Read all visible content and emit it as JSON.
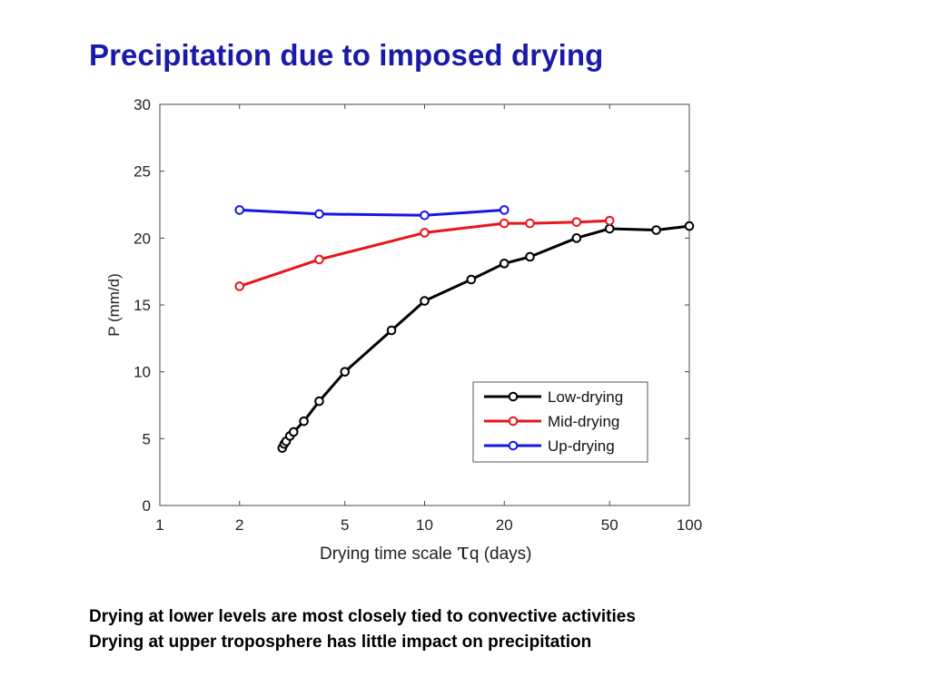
{
  "slide": {
    "title": "Precipitation due to imposed drying",
    "notes": [
      "Drying at lower levels are most closely tied to convective activities",
      "Drying at upper troposphere has little impact on precipitation"
    ]
  },
  "chart_data": {
    "type": "line",
    "title": "",
    "xlabel": {
      "prefix": "Drying time scale ",
      "symbol": "τ",
      "suffix": "q (days)"
    },
    "ylabel": "P (mm/d)",
    "xscale": "log",
    "xlim": [
      1,
      100
    ],
    "ylim": [
      0,
      30
    ],
    "xticks": [
      1,
      2,
      5,
      10,
      20,
      50,
      100
    ],
    "xtick_labels": [
      "1",
      "2",
      "5",
      "10",
      "20",
      "50",
      "100"
    ],
    "yticks": [
      0,
      5,
      10,
      15,
      20,
      25,
      30
    ],
    "ytick_labels": [
      "0",
      "5",
      "10",
      "15",
      "20",
      "25",
      "30"
    ],
    "grid": false,
    "legend_position": "bottom-right",
    "series": [
      {
        "name": "Low-drying",
        "color": "#000000",
        "marker": "circle",
        "x": [
          2.9,
          2.95,
          3.0,
          3.1,
          3.2,
          3.5,
          4.0,
          5.0,
          7.5,
          10,
          15,
          20,
          25,
          37.5,
          50,
          75,
          100
        ],
        "y": [
          4.3,
          4.6,
          4.8,
          5.2,
          5.5,
          6.3,
          7.8,
          10.0,
          13.1,
          15.3,
          16.9,
          18.1,
          18.6,
          20.0,
          20.7,
          20.6,
          20.9
        ]
      },
      {
        "name": "Mid-drying",
        "color": "#e8151b",
        "marker": "circle",
        "x": [
          2,
          4,
          10,
          20,
          25,
          37.5,
          50
        ],
        "y": [
          16.4,
          18.4,
          20.4,
          21.1,
          21.1,
          21.2,
          21.3
        ]
      },
      {
        "name": "Up-drying",
        "color": "#1616e8",
        "marker": "circle",
        "x": [
          2,
          4,
          10,
          20
        ],
        "y": [
          22.1,
          21.8,
          21.7,
          22.1
        ]
      }
    ]
  }
}
